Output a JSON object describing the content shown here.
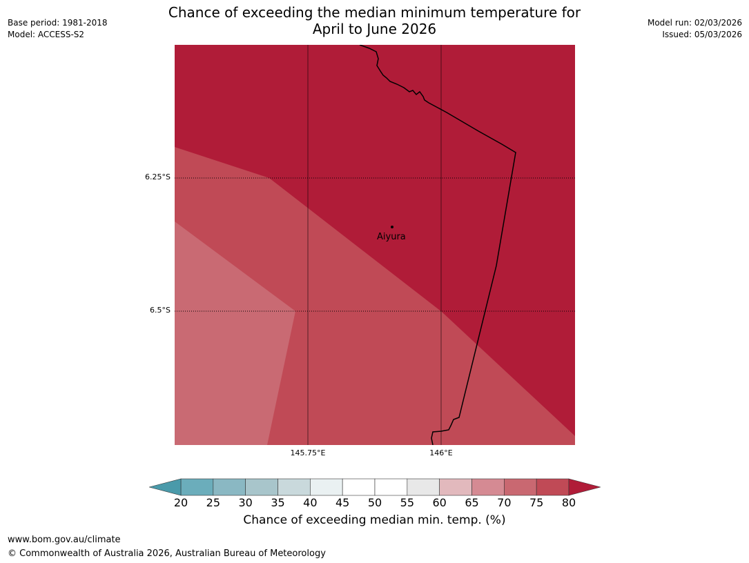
{
  "header": {
    "title_line1": "Chance of exceeding the median minimum temperature for",
    "title_line2": "April to June 2026",
    "base_period": "Base period: 1981-2018",
    "model": "Model: ACCESS-S2",
    "model_run": "Model run: 02/03/2026",
    "issued": "Issued: 05/03/2026"
  },
  "map": {
    "lat_labels": [
      "6.25°S",
      "6.5°S"
    ],
    "lon_labels": [
      "145.75°E",
      "146°E"
    ],
    "place_name": "Aiyura",
    "legend": {
      "ticks": [
        "20",
        "25",
        "30",
        "35",
        "40",
        "45",
        "50",
        "55",
        "60",
        "65",
        "70",
        "75",
        "80"
      ],
      "colors": [
        "#6badbb",
        "#8ab8c3",
        "#a8c5cb",
        "#c9d9dc",
        "#eaf1f2",
        "#ffffff",
        "#ffffff",
        "#e8e8e8",
        "#e2b9bd",
        "#d58a93",
        "#c96871",
        "#c04a56"
      ],
      "under_color": "#4a9aaa",
      "over_color": "#b01c38",
      "label": "Chance of exceeding median min. temp. (%)"
    },
    "colors": {
      "band_80plus": "#b01c38",
      "band_75_80": "#c04a56",
      "band_70_75": "#c96a73"
    }
  },
  "footer": {
    "url": "www.bom.gov.au/climate",
    "copyright": "© Commonwealth of Australia 2026, Australian Bureau of Meteorology"
  }
}
